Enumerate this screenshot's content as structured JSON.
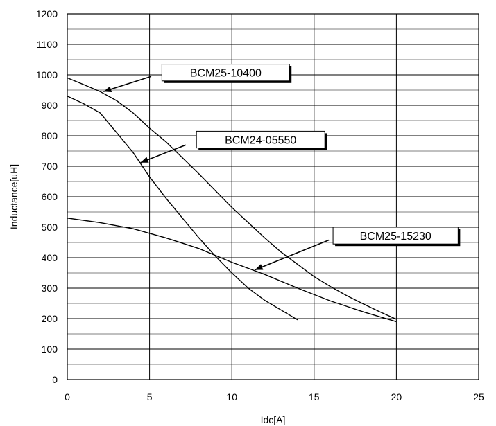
{
  "chart_data": {
    "type": "line",
    "title": "",
    "xlabel": "Idc[A]",
    "ylabel": "Inductance[uH]",
    "xlim": [
      0,
      25
    ],
    "ylim": [
      0,
      1200
    ],
    "x_ticks": [
      0,
      5,
      10,
      15,
      20,
      25
    ],
    "y_ticks": [
      0,
      100,
      200,
      300,
      400,
      500,
      600,
      700,
      800,
      900,
      1000,
      1100,
      1200
    ],
    "grid": true,
    "series": [
      {
        "name": "BCM25-10400",
        "x": [
          0,
          1,
          2,
          3,
          4,
          5,
          6,
          7,
          8,
          9,
          10,
          11,
          12,
          13,
          14,
          15,
          16,
          17,
          18,
          19,
          20
        ],
        "y": [
          990,
          968,
          945,
          915,
          875,
          825,
          780,
          728,
          675,
          620,
          565,
          515,
          465,
          418,
          378,
          338,
          305,
          275,
          248,
          222,
          198
        ]
      },
      {
        "name": "BCM24-05550",
        "x": [
          0,
          1,
          2,
          3,
          4,
          5,
          6,
          7,
          8,
          9,
          10,
          11,
          12,
          13,
          14
        ],
        "y": [
          930,
          905,
          875,
          810,
          745,
          665,
          595,
          530,
          465,
          405,
          350,
          300,
          260,
          228,
          196
        ]
      },
      {
        "name": "BCM25-15230",
        "x": [
          0,
          2,
          4,
          6,
          8,
          10,
          12,
          14,
          16,
          18,
          20
        ],
        "y": [
          530,
          515,
          495,
          465,
          430,
          385,
          345,
          300,
          258,
          222,
          190
        ]
      }
    ],
    "callouts": [
      {
        "label": "BCM25-10400",
        "box_x": 5.75,
        "box_y": 1035,
        "box_x2": 13.5,
        "box_y2": 980,
        "line_from_x": 5.1,
        "line_from_y": 995,
        "arrow_to_x": 2.2,
        "arrow_to_y": 945
      },
      {
        "label": "BCM24-05550",
        "box_x": 7.85,
        "box_y": 815,
        "box_x2": 15.65,
        "box_y2": 760,
        "line_from_x": 7.2,
        "line_from_y": 770,
        "arrow_to_x": 4.45,
        "arrow_to_y": 712
      },
      {
        "label": "BCM25-15230",
        "box_x": 16.15,
        "box_y": 500,
        "box_x2": 23.75,
        "box_y2": 445,
        "line_from_x": 15.9,
        "line_from_y": 458,
        "arrow_to_x": 11.4,
        "arrow_to_y": 360
      }
    ]
  }
}
